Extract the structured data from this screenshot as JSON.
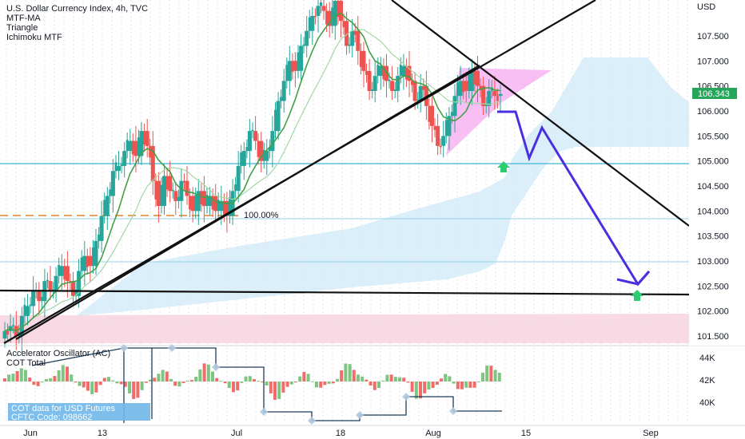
{
  "chart_data": {
    "type": "candlestick",
    "title": "U.S. Dollar Currency Index, 4h, TVC",
    "indicators": [
      "MTF-MA",
      "Triangle",
      "Ichimoku MTF"
    ],
    "price_axis": {
      "unit": "USD",
      "ticks": [
        "107.500",
        "107.000",
        "106.500",
        "106.000",
        "105.500",
        "105.000",
        "104.500",
        "104.000",
        "103.500",
        "103.000",
        "102.500",
        "102.000",
        "101.500"
      ],
      "range": [
        101.35,
        108.0
      ],
      "last_price": "106.343"
    },
    "time_axis": {
      "ticks": [
        "Jun",
        "13",
        "Jul",
        "18",
        "Aug",
        "15",
        "Sep"
      ]
    },
    "fib_label": "100.00%",
    "close_series": [
      101.6,
      101.7,
      101.5,
      101.9,
      102.1,
      102.4,
      102.2,
      102.6,
      102.4,
      102.7,
      102.9,
      102.6,
      102.3,
      102.8,
      103.1,
      102.9,
      103.4,
      103.9,
      104.3,
      104.8,
      104.9,
      105.2,
      105.4,
      105.1,
      105.6,
      105.3,
      104.6,
      104.1,
      104.7,
      104.4,
      104.2,
      104.6,
      104.3,
      104.0,
      104.4,
      104.1,
      104.3,
      104.0,
      104.2,
      103.9,
      104.4,
      104.9,
      105.2,
      105.6,
      105.4,
      105.0,
      105.2,
      105.6,
      106.2,
      106.6,
      107.0,
      106.8,
      107.3,
      107.6,
      107.9,
      108.1,
      108.0,
      107.7,
      108.2,
      107.8,
      107.3,
      107.6,
      107.2,
      106.8,
      106.4,
      106.7,
      106.9,
      106.6,
      106.4,
      106.7,
      106.9,
      106.6,
      106.2,
      106.5,
      106.1,
      105.7,
      105.3,
      105.5,
      105.9,
      106.3,
      106.6,
      106.4,
      106.8,
      106.5,
      106.1,
      106.4,
      106.3,
      106.34
    ],
    "lower_pane": {
      "title": "Accelerator Oscillator (AC)",
      "subtitle": "COT Total",
      "ticks": [
        "44K",
        "42K",
        "40K"
      ],
      "cot_note_line1": "COT data for USD Futures",
      "cot_note_line2": "CFTC Code: 098662"
    },
    "colors": {
      "up": "#26a69a",
      "down": "#ef5350",
      "ma_fast": "#43a047",
      "ma_slow": "#a5d6a7",
      "trendline": "#000000",
      "projection": "#4a2fe0",
      "cloud_blue": "#cfeaf8",
      "cloud_pink": "#f8d0dc",
      "triangle_fill": "#f7aef0",
      "last_price_bg": "#26a65b"
    }
  }
}
